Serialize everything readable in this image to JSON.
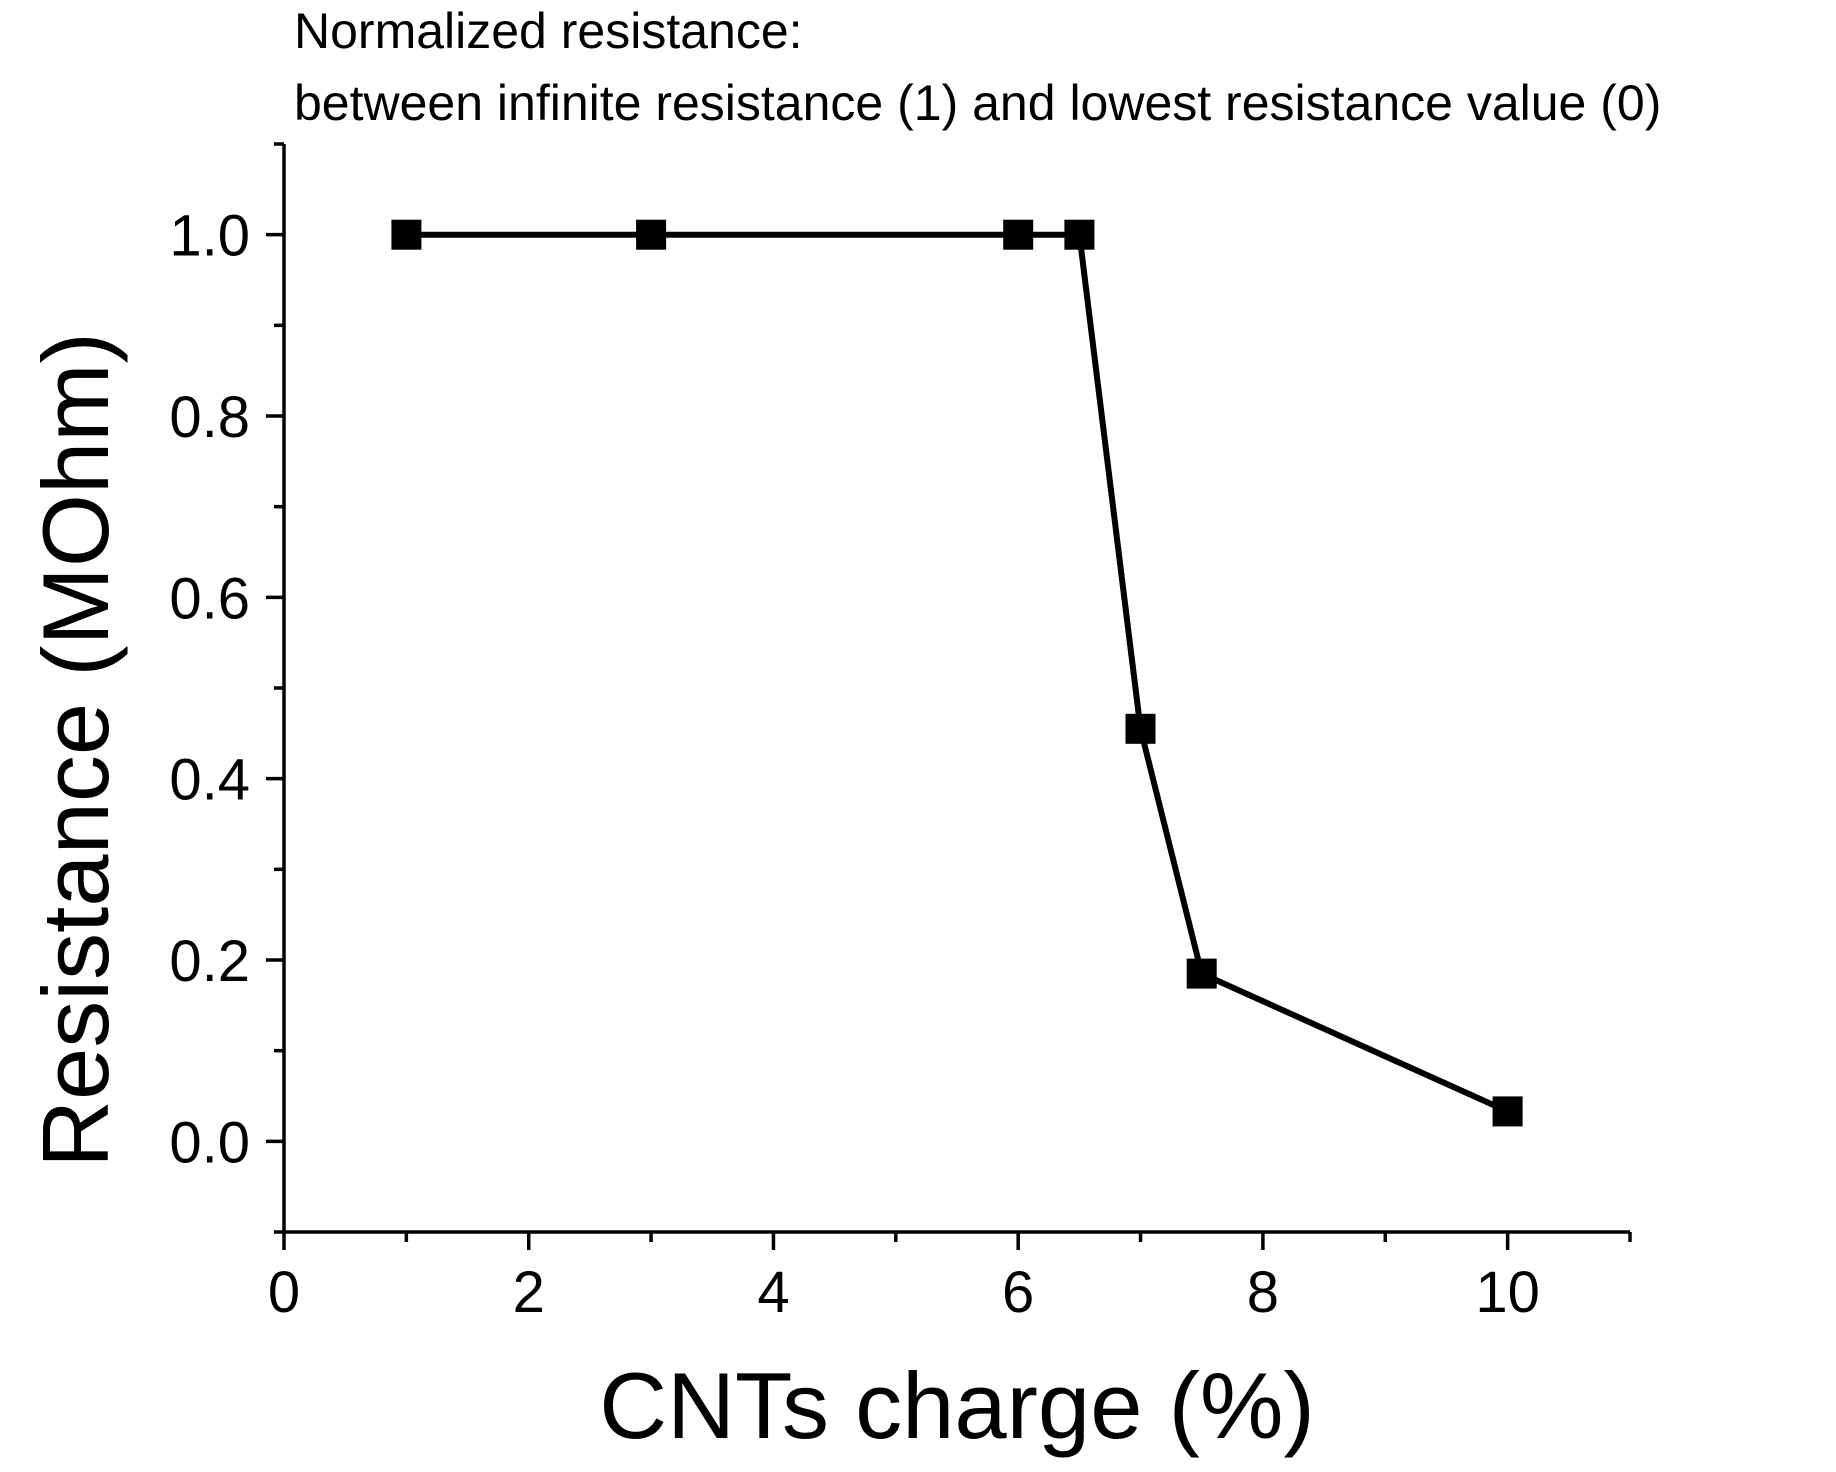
{
  "chart_data": {
    "type": "line",
    "annotation": [
      "Normalized resistance:",
      "between infinite resistance (1) and lowest resistance value (0)"
    ],
    "xlabel": "CNTs charge (%)",
    "ylabel": "Resistance (MOhm)",
    "xlim": [
      0,
      11
    ],
    "ylim": [
      -0.1,
      1.1
    ],
    "xticks": [
      0,
      2,
      4,
      6,
      8,
      10
    ],
    "xtick_labels": [
      "0",
      "2",
      "4",
      "6",
      "8",
      "10"
    ],
    "x_minor_ticks": [
      1,
      3,
      5,
      7,
      9,
      11
    ],
    "yticks": [
      0.0,
      0.2,
      0.4,
      0.6,
      0.8,
      1.0
    ],
    "ytick_labels": [
      "0.0",
      "0.2",
      "0.4",
      "0.6",
      "0.8",
      "1.0"
    ],
    "y_minor_ticks": [
      -0.1,
      0.1,
      0.3,
      0.5,
      0.7,
      0.9,
      1.1
    ],
    "grid": false,
    "series": [
      {
        "name": "Normalized resistance",
        "marker": "square",
        "color": "#000000",
        "x": [
          1,
          3,
          6,
          6.5,
          7,
          7.5,
          10
        ],
        "y": [
          1.0,
          1.0,
          1.0,
          1.0,
          0.455,
          0.185,
          0.033
        ]
      }
    ]
  }
}
